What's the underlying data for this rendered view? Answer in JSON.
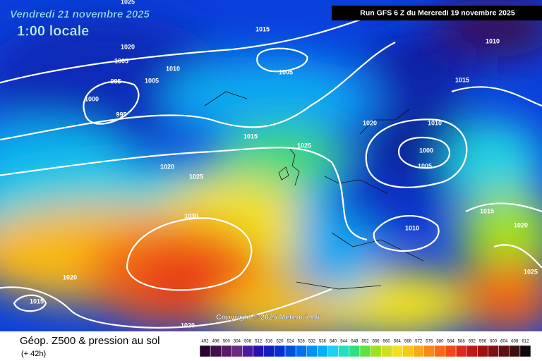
{
  "header": {
    "valid_date": "Vendredi 21 novembre 2025",
    "local_time": "1:00 locale",
    "run": "Run GFS 6 Z du Mercredi 19 novembre 2025"
  },
  "map": {
    "isobar_labels": [
      1025,
      1015,
      1020,
      1005,
      1010,
      995,
      1005,
      1000,
      995,
      1005,
      1015,
      1020,
      1025,
      1025,
      1020,
      1010,
      1000,
      1005,
      1015,
      1010,
      1030,
      1010,
      1015,
      1020,
      1025,
      1020,
      1015,
      1020
    ],
    "copyright": "Copyright © 2025 Meteociel.fr"
  },
  "legend": {
    "title": "Géop. Z500 & pression au sol",
    "lead": "(+ 42h)",
    "scale": {
      "values": [
        492,
        496,
        500,
        504,
        508,
        512,
        516,
        520,
        524,
        528,
        532,
        536,
        540,
        544,
        548,
        552,
        556,
        560,
        564,
        568,
        572,
        576,
        580,
        584,
        588,
        592,
        596,
        600,
        604,
        608,
        612
      ],
      "colors": [
        "#2a0030",
        "#40104a",
        "#5a1a66",
        "#6a2a80",
        "#4a1aa0",
        "#2a10b0",
        "#1020c0",
        "#0030d0",
        "#0050e0",
        "#0070f0",
        "#0090f8",
        "#00b0f8",
        "#20d0f0",
        "#20e0c0",
        "#30e080",
        "#60e040",
        "#a0e020",
        "#d0e020",
        "#f0e020",
        "#f8c818",
        "#f8a818",
        "#f88818",
        "#f86818",
        "#f04818",
        "#e02818",
        "#c01818",
        "#a01010",
        "#801010",
        "#601010",
        "#401010",
        "#100808"
      ]
    }
  }
}
